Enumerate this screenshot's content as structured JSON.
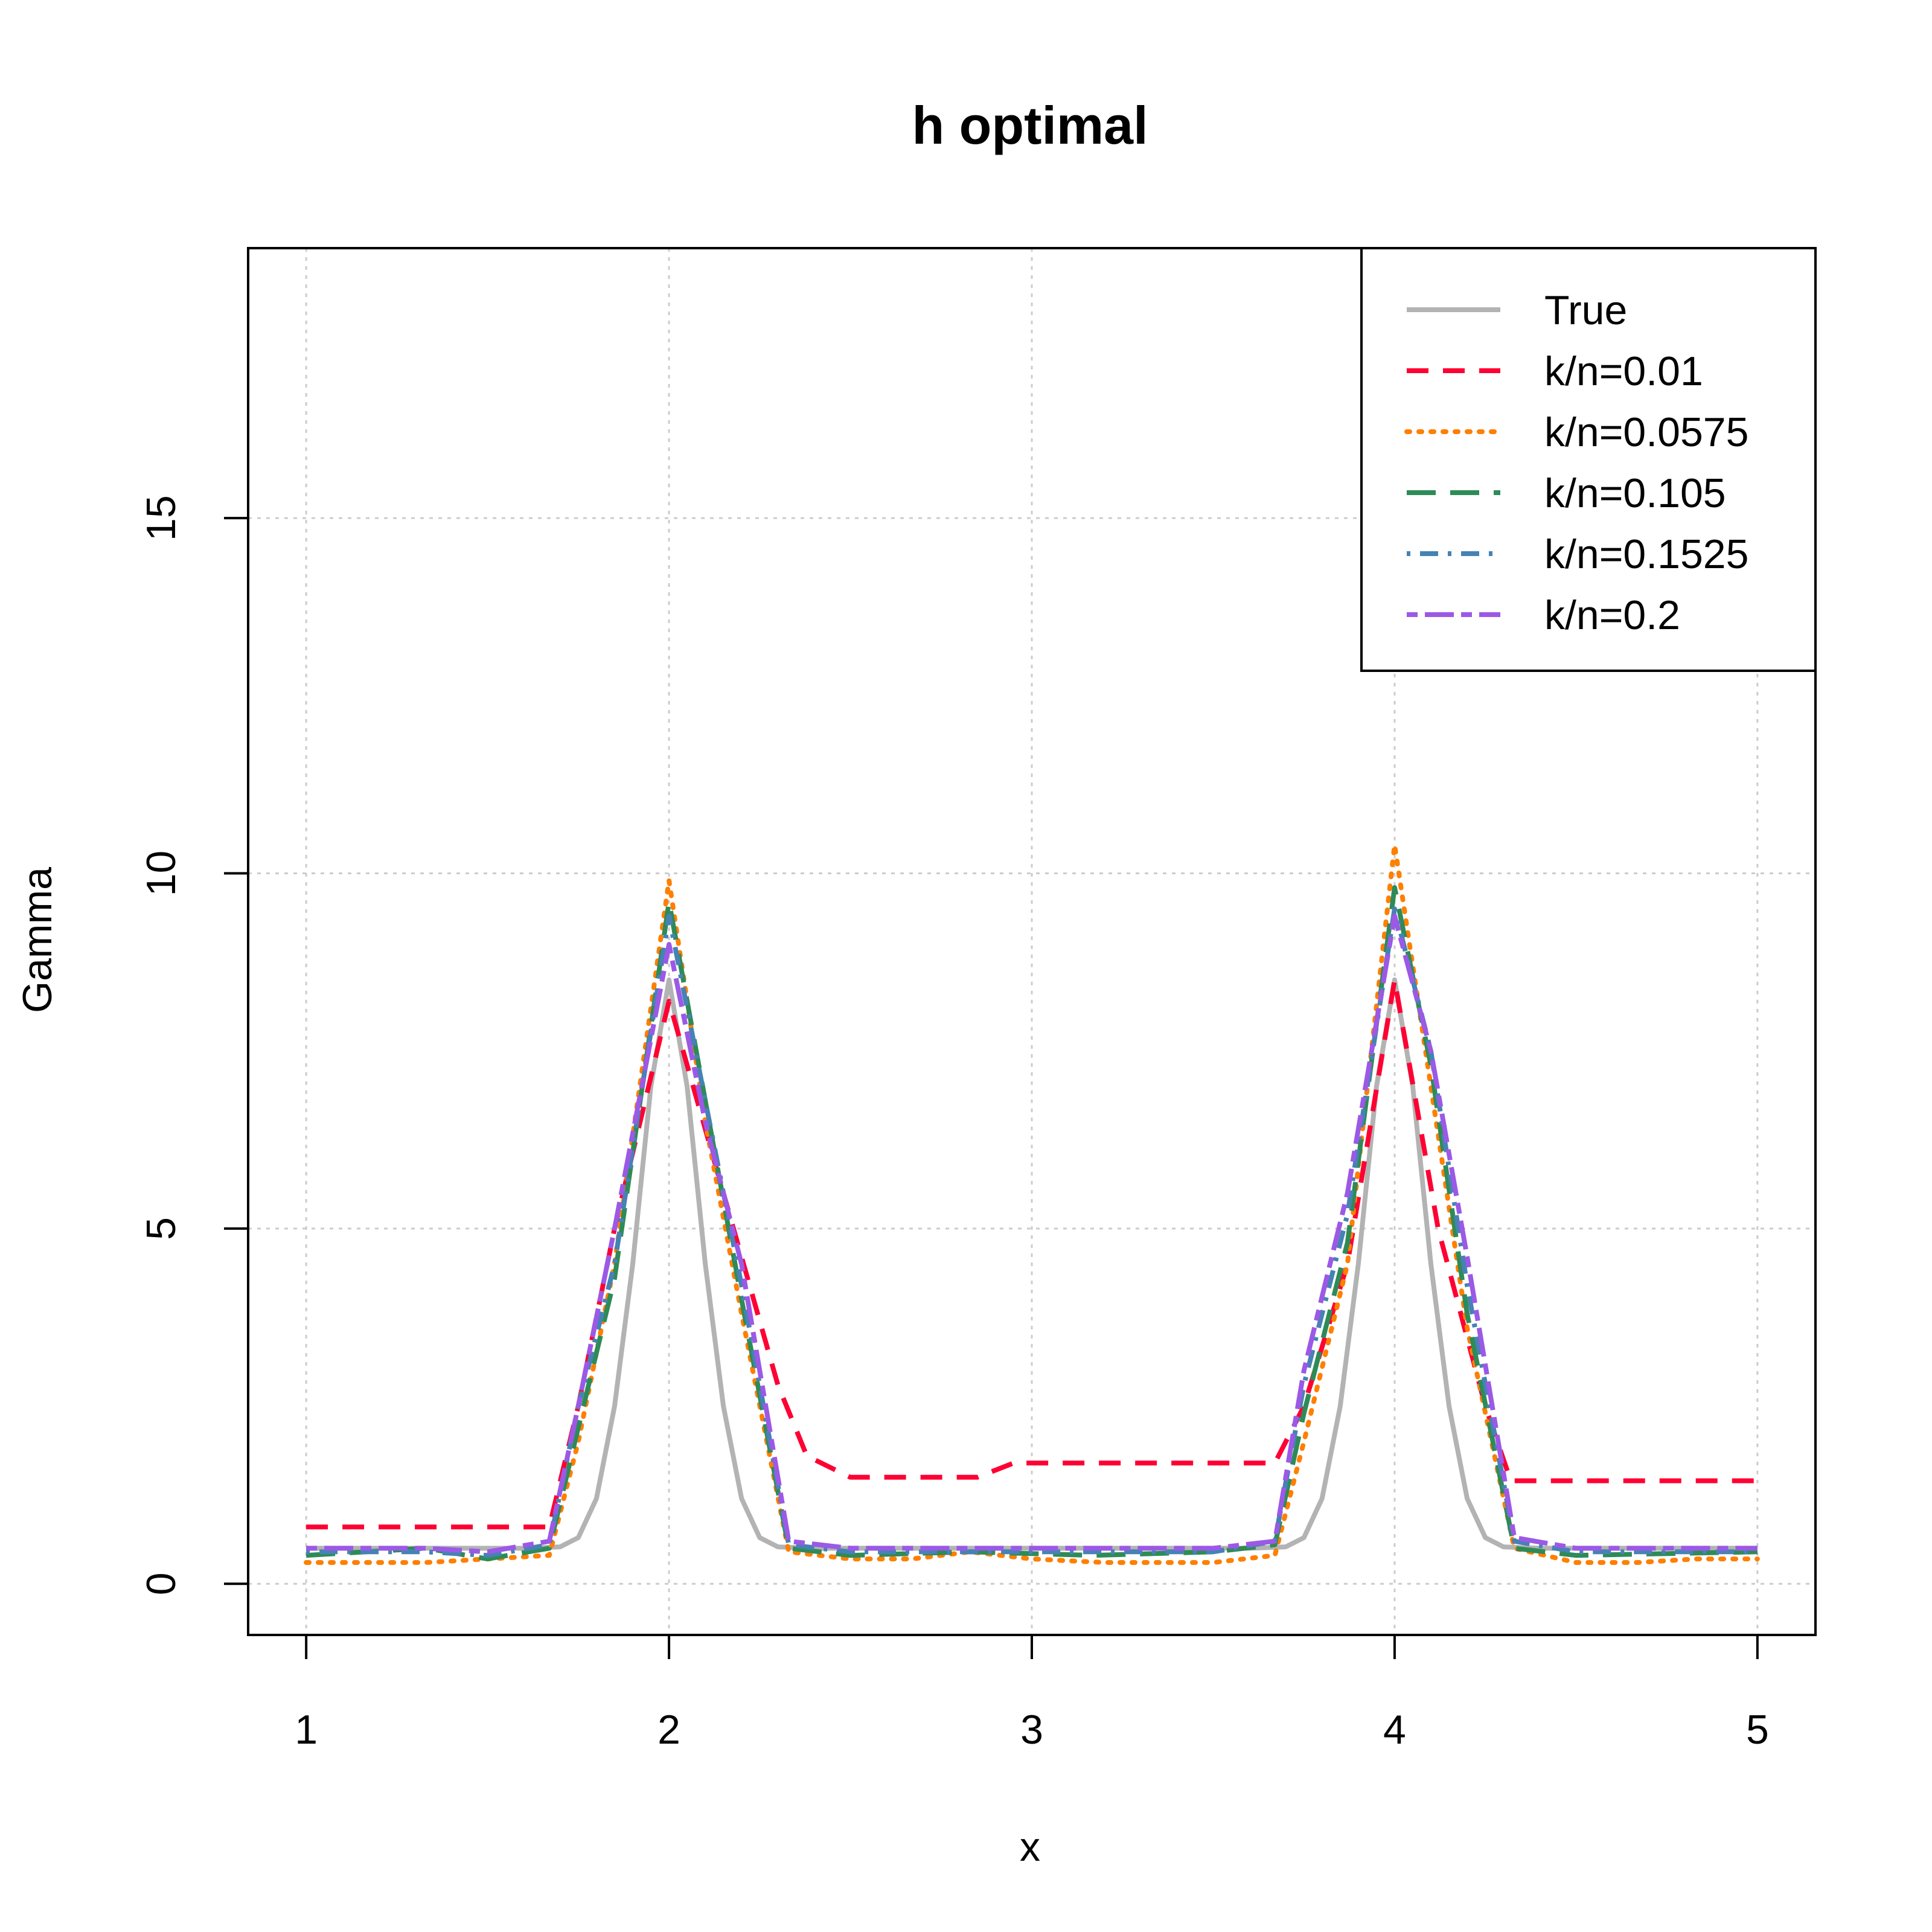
{
  "chart_data": {
    "type": "line",
    "title": "h optimal",
    "xlabel": "x",
    "ylabel": "Gamma",
    "xlim": [
      0.84,
      5.16
    ],
    "ylim": [
      -0.72,
      18.8
    ],
    "x_ticks": [
      1,
      2,
      3,
      4,
      5
    ],
    "y_ticks": [
      0,
      5,
      10,
      15
    ],
    "grid": true,
    "legend_position": "top-right",
    "series": [
      {
        "name": "True",
        "color": "#b3b3b3",
        "dash": "solid",
        "points": [
          [
            1,
            0.5
          ],
          [
            1.6,
            0.5
          ],
          [
            1.7,
            0.52
          ],
          [
            1.75,
            0.65
          ],
          [
            1.8,
            1.2
          ],
          [
            1.85,
            2.5
          ],
          [
            1.9,
            4.5
          ],
          [
            1.95,
            7.0
          ],
          [
            2.0,
            8.5
          ],
          [
            2.05,
            7.0
          ],
          [
            2.1,
            4.5
          ],
          [
            2.15,
            2.5
          ],
          [
            2.2,
            1.2
          ],
          [
            2.25,
            0.65
          ],
          [
            2.3,
            0.52
          ],
          [
            2.4,
            0.5
          ],
          [
            3.6,
            0.5
          ],
          [
            3.7,
            0.52
          ],
          [
            3.75,
            0.65
          ],
          [
            3.8,
            1.2
          ],
          [
            3.85,
            2.5
          ],
          [
            3.9,
            4.5
          ],
          [
            3.95,
            7.0
          ],
          [
            4.0,
            8.5
          ],
          [
            4.05,
            7.0
          ],
          [
            4.1,
            4.5
          ],
          [
            4.15,
            2.5
          ],
          [
            4.2,
            1.2
          ],
          [
            4.25,
            0.65
          ],
          [
            4.3,
            0.52
          ],
          [
            4.4,
            0.5
          ],
          [
            5,
            0.5
          ]
        ]
      },
      {
        "name": "k/n=0.01",
        "color": "#ff0033",
        "dash": "dashed",
        "points": [
          [
            1,
            0.8
          ],
          [
            1.67,
            0.8
          ],
          [
            1.75,
            2.5
          ],
          [
            1.85,
            5.0
          ],
          [
            2.0,
            8.2
          ],
          [
            2.15,
            5.5
          ],
          [
            2.3,
            2.8
          ],
          [
            2.38,
            1.8
          ],
          [
            2.5,
            1.5
          ],
          [
            2.85,
            1.5
          ],
          [
            2.95,
            1.7
          ],
          [
            3.67,
            1.7
          ],
          [
            3.75,
            2.5
          ],
          [
            3.87,
            4.5
          ],
          [
            4.0,
            8.5
          ],
          [
            4.12,
            5.0
          ],
          [
            4.25,
            2.5
          ],
          [
            4.32,
            1.45
          ],
          [
            5,
            1.45
          ]
        ]
      },
      {
        "name": "k/n=0.0575",
        "color": "#ff7f00",
        "dash": "dotted",
        "points": [
          [
            1,
            0.3
          ],
          [
            1.33,
            0.3
          ],
          [
            1.67,
            0.4
          ],
          [
            1.75,
            2.0
          ],
          [
            1.85,
            4.5
          ],
          [
            2.0,
            9.9
          ],
          [
            2.1,
            6.5
          ],
          [
            2.2,
            3.8
          ],
          [
            2.33,
            0.45
          ],
          [
            2.5,
            0.35
          ],
          [
            2.67,
            0.35
          ],
          [
            2.83,
            0.45
          ],
          [
            3.0,
            0.35
          ],
          [
            3.2,
            0.3
          ],
          [
            3.5,
            0.3
          ],
          [
            3.67,
            0.4
          ],
          [
            3.75,
            2.0
          ],
          [
            3.87,
            4.5
          ],
          [
            4.0,
            10.4
          ],
          [
            4.1,
            7.0
          ],
          [
            4.2,
            3.6
          ],
          [
            4.33,
            0.5
          ],
          [
            4.5,
            0.3
          ],
          [
            4.67,
            0.3
          ],
          [
            4.83,
            0.35
          ],
          [
            5,
            0.35
          ]
        ]
      },
      {
        "name": "k/n=0.105",
        "color": "#2e8b57",
        "dash": "longdash",
        "points": [
          [
            1,
            0.4
          ],
          [
            1.33,
            0.5
          ],
          [
            1.5,
            0.35
          ],
          [
            1.67,
            0.5
          ],
          [
            1.75,
            2.2
          ],
          [
            1.85,
            4.3
          ],
          [
            2.0,
            9.6
          ],
          [
            2.1,
            6.8
          ],
          [
            2.2,
            4.0
          ],
          [
            2.33,
            0.5
          ],
          [
            2.5,
            0.4
          ],
          [
            2.83,
            0.45
          ],
          [
            3.17,
            0.4
          ],
          [
            3.5,
            0.45
          ],
          [
            3.67,
            0.55
          ],
          [
            3.75,
            2.4
          ],
          [
            3.87,
            4.8
          ],
          [
            4.0,
            9.8
          ],
          [
            4.1,
            7.3
          ],
          [
            4.2,
            3.8
          ],
          [
            4.33,
            0.5
          ],
          [
            4.5,
            0.4
          ],
          [
            5,
            0.45
          ]
        ]
      },
      {
        "name": "k/n=0.1525",
        "color": "#4682b4",
        "dash": "dotdash",
        "points": [
          [
            1,
            0.45
          ],
          [
            1.33,
            0.45
          ],
          [
            1.5,
            0.4
          ],
          [
            1.67,
            0.55
          ],
          [
            1.75,
            2.5
          ],
          [
            1.85,
            4.5
          ],
          [
            2.0,
            9.4
          ],
          [
            2.1,
            6.8
          ],
          [
            2.2,
            4.2
          ],
          [
            2.33,
            0.55
          ],
          [
            2.5,
            0.45
          ],
          [
            2.83,
            0.45
          ],
          [
            3.17,
            0.45
          ],
          [
            3.5,
            0.45
          ],
          [
            3.67,
            0.6
          ],
          [
            3.75,
            2.8
          ],
          [
            3.87,
            5.2
          ],
          [
            4.0,
            9.5
          ],
          [
            4.1,
            7.5
          ],
          [
            4.2,
            4.2
          ],
          [
            4.33,
            0.6
          ],
          [
            4.5,
            0.45
          ],
          [
            5,
            0.45
          ]
        ]
      },
      {
        "name": "k/n=0.2",
        "color": "#9b59e6",
        "dash": "twodash",
        "points": [
          [
            1,
            0.5
          ],
          [
            1.33,
            0.5
          ],
          [
            1.5,
            0.45
          ],
          [
            1.67,
            0.6
          ],
          [
            1.75,
            2.5
          ],
          [
            1.85,
            5.0
          ],
          [
            2.0,
            9.0
          ],
          [
            2.1,
            6.5
          ],
          [
            2.2,
            4.5
          ],
          [
            2.33,
            0.6
          ],
          [
            2.5,
            0.5
          ],
          [
            2.83,
            0.5
          ],
          [
            3.17,
            0.5
          ],
          [
            3.5,
            0.5
          ],
          [
            3.67,
            0.6
          ],
          [
            3.75,
            3.0
          ],
          [
            3.87,
            5.5
          ],
          [
            4.0,
            9.4
          ],
          [
            4.1,
            7.5
          ],
          [
            4.2,
            4.6
          ],
          [
            4.33,
            0.65
          ],
          [
            4.5,
            0.5
          ],
          [
            5,
            0.5
          ]
        ]
      }
    ]
  }
}
